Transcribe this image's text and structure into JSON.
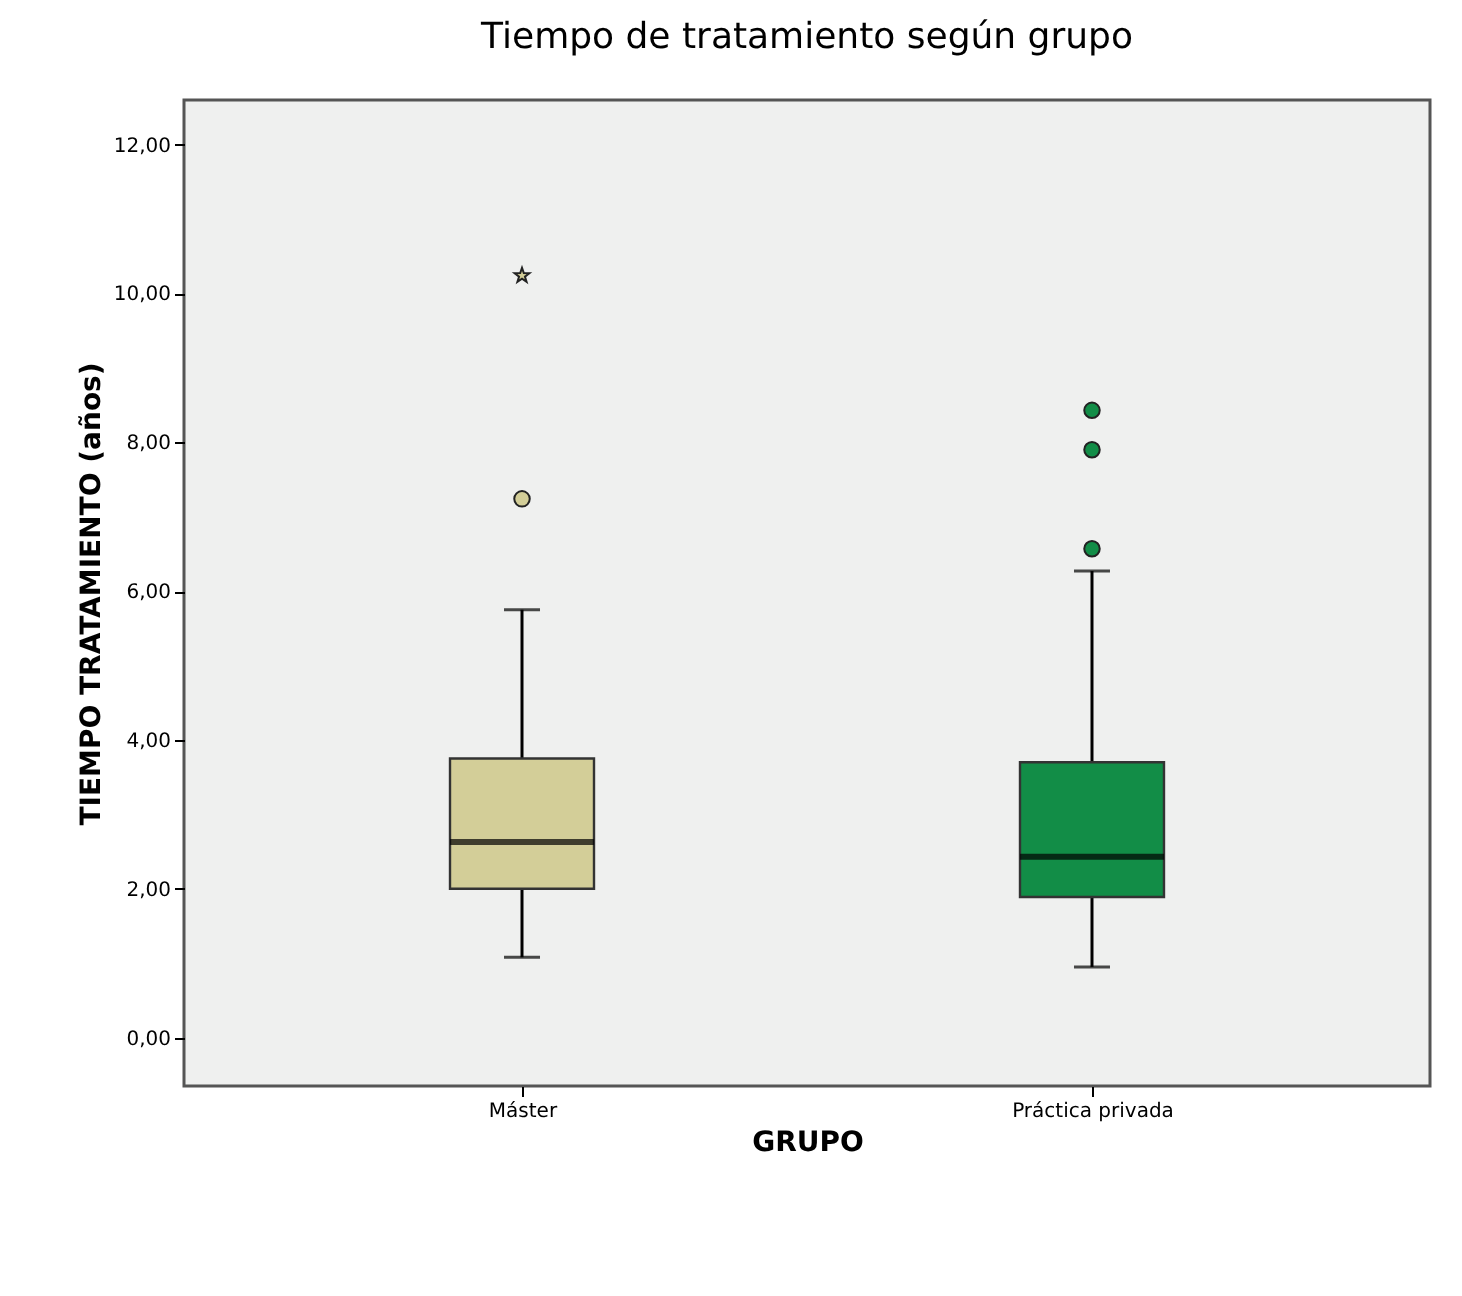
{
  "chart_data": {
    "type": "box",
    "title": "Tiempo de tratamiento según grupo",
    "xlabel": "GRUPO",
    "ylabel": "TIEMPO TRATAMIENTO (años)",
    "categories": [
      "Máster",
      "Práctica privada"
    ],
    "colors": [
      "#d3ce98",
      "#128d47"
    ],
    "boxes": [
      {
        "low": 1.08,
        "q1": 2.0,
        "median": 2.63,
        "q3": 3.75,
        "high": 5.75,
        "outliers": [
          7.24,
          10.24
        ]
      },
      {
        "low": 0.95,
        "q1": 1.89,
        "median": 2.43,
        "q3": 3.7,
        "high": 6.27,
        "outliers": [
          6.57,
          7.9,
          8.43
        ]
      }
    ],
    "ylim": [
      -0.65,
      12.6
    ],
    "yticks": [
      {
        "value": 0,
        "label": "0,00"
      },
      {
        "value": 2,
        "label": "2,00"
      },
      {
        "value": 4,
        "label": "4,00"
      },
      {
        "value": 6,
        "label": "6,00"
      },
      {
        "value": 8,
        "label": "8,00"
      },
      {
        "value": 10,
        "label": "10,00"
      },
      {
        "value": 12,
        "label": "12,00"
      }
    ],
    "grid": false
  }
}
